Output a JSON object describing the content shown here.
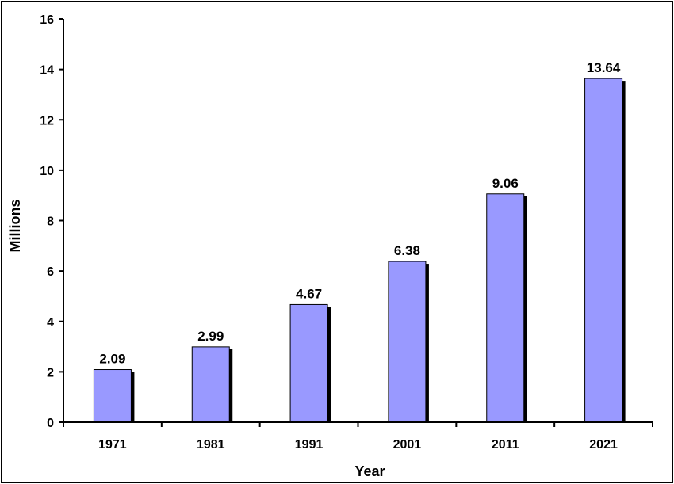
{
  "chart_data": {
    "type": "bar",
    "title": "",
    "xlabel": "Year",
    "ylabel": "Millions",
    "categories": [
      "1971",
      "1981",
      "1991",
      "2001",
      "2011",
      "2021"
    ],
    "values": [
      2.09,
      2.99,
      4.67,
      6.38,
      9.06,
      13.64
    ],
    "data_labels": [
      "2.09",
      "2.99",
      "4.67",
      "6.38",
      "9.06",
      "13.64"
    ],
    "ylim": [
      0,
      16
    ],
    "yticks": [
      0,
      2,
      4,
      6,
      8,
      10,
      12,
      14,
      16
    ],
    "grid": false,
    "legend": "none",
    "colors": {
      "bar": "#9999ff",
      "bar_shadow": "#000000",
      "axis": "#000000"
    }
  }
}
